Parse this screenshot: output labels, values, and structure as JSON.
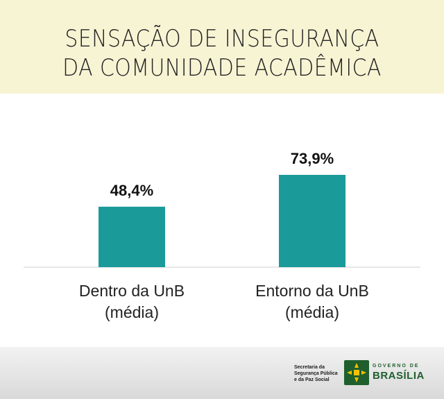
{
  "chart_data": {
    "type": "bar",
    "title_lines": [
      "SENSAÇÃO DE INSEGURANÇA",
      "DA COMUNIDADE ACADÊMICA"
    ],
    "categories": [
      [
        "Dentro da UnB",
        "(média)"
      ],
      [
        "Entorno da UnB",
        "(média)"
      ]
    ],
    "values": [
      48.4,
      73.9
    ],
    "value_labels": [
      "48,4%",
      "73,9%"
    ],
    "ylim": [
      0,
      100
    ],
    "bar_color": "#1a9a99",
    "grid": false
  },
  "footer": {
    "secretaria_lines": [
      "Secretaria da",
      "Segurança Pública",
      "e da Paz Social"
    ],
    "governo_label": "GOVERNO DE",
    "brasilia_label": "BRASÍLIA"
  },
  "colors": {
    "header_bg": "#f7f4d4",
    "brand_green": "#1f5f2e",
    "emblem_yellow": "#f2c200"
  }
}
